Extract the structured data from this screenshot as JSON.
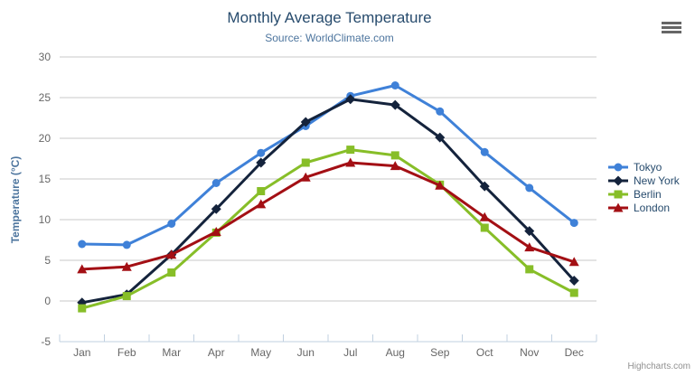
{
  "header": {
    "title": "Monthly Average Temperature",
    "subtitle": "Source: WorldClimate.com"
  },
  "chart_data": {
    "type": "line",
    "categories": [
      "Jan",
      "Feb",
      "Mar",
      "Apr",
      "May",
      "Jun",
      "Jul",
      "Aug",
      "Sep",
      "Oct",
      "Nov",
      "Dec"
    ],
    "series": [
      {
        "name": "Tokyo",
        "color": "#3F81D8",
        "marker": "circle",
        "values": [
          7.0,
          6.9,
          9.5,
          14.5,
          18.2,
          21.5,
          25.2,
          26.5,
          23.3,
          18.3,
          13.9,
          9.6
        ]
      },
      {
        "name": "New York",
        "color": "#14233C",
        "marker": "diamond",
        "values": [
          -0.2,
          0.8,
          5.7,
          11.3,
          17.0,
          22.0,
          24.8,
          24.1,
          20.1,
          14.1,
          8.6,
          2.5
        ]
      },
      {
        "name": "Berlin",
        "color": "#87BE28",
        "marker": "square",
        "values": [
          -0.9,
          0.6,
          3.5,
          8.4,
          13.5,
          17.0,
          18.6,
          17.9,
          14.3,
          9.0,
          3.9,
          1.0
        ]
      },
      {
        "name": "London",
        "color": "#A30F14",
        "marker": "triangle",
        "values": [
          3.9,
          4.2,
          5.7,
          8.5,
          11.9,
          15.2,
          17.0,
          16.6,
          14.2,
          10.3,
          6.6,
          4.8
        ]
      }
    ],
    "title": "Monthly Average Temperature",
    "subtitle": "Source: WorldClimate.com",
    "xlabel": "",
    "ylabel": "Temperature (°C)",
    "ylim": [
      -5,
      30
    ],
    "ytick_step": 5,
    "grid": true,
    "legend_position": "right"
  },
  "colors": {
    "title": "#274b6d",
    "subtitle": "#4d759e",
    "axis_label": "#666666",
    "axis_line": "#c0d0e0",
    "grid": "#c8c8c8",
    "legend_text": "#274b6d",
    "credits": "#909090",
    "menu_icon": "#666666"
  },
  "credits": {
    "label": "Highcharts.com"
  }
}
